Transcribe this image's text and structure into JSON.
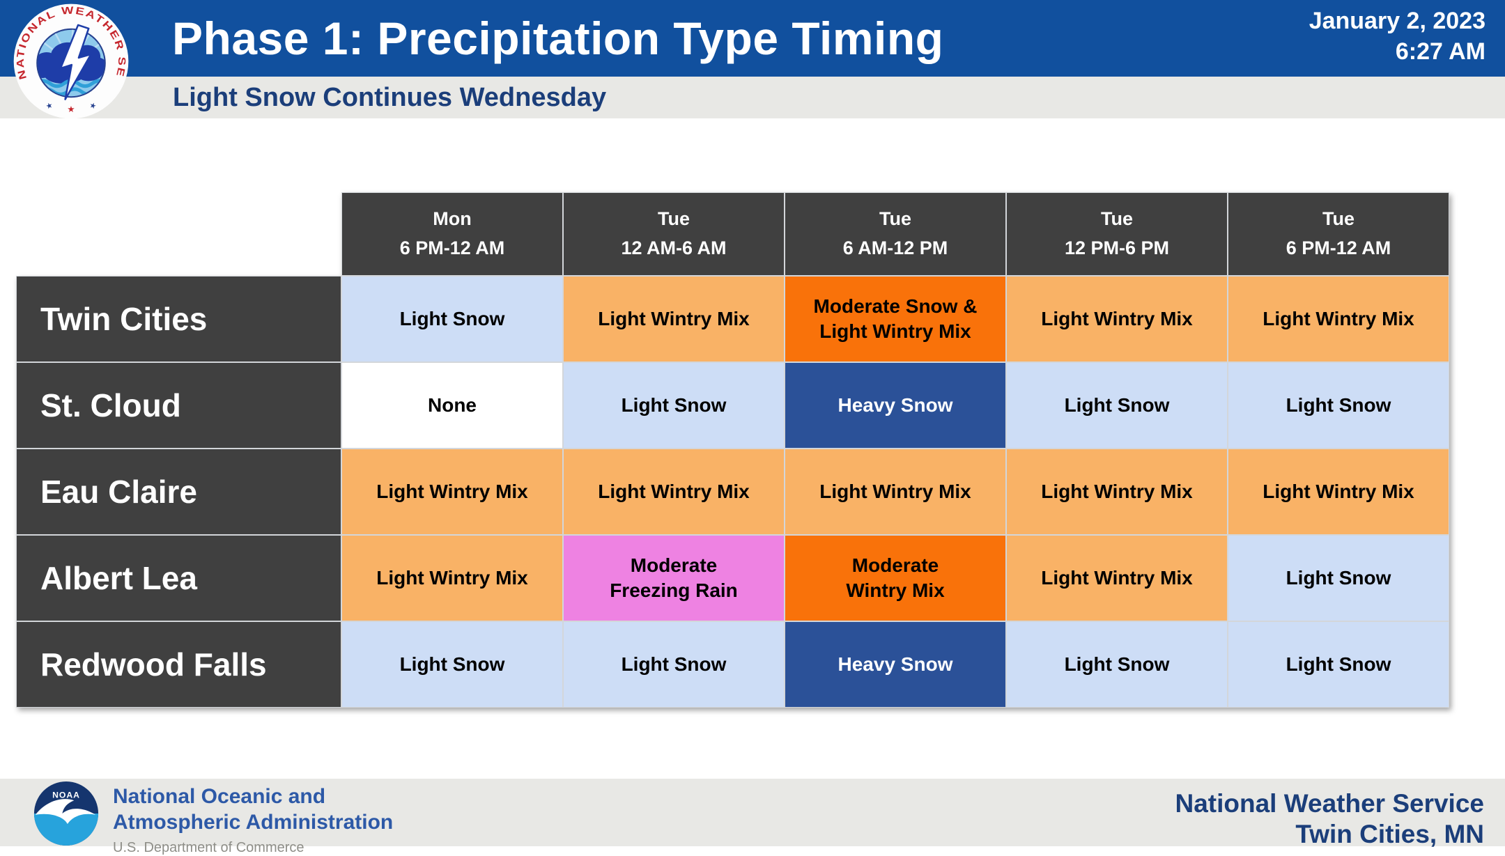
{
  "header": {
    "title": "Phase 1: Precipitation Type Timing",
    "subtitle": "Light Snow Continues Wednesday",
    "date": "January 2, 2023",
    "time": "6:27 AM",
    "nws_logo_ring_text": "NATIONAL WEATHER SERVICE"
  },
  "chart_data": {
    "type": "table",
    "title": "Phase 1: Precipitation Type Timing",
    "subtitle": "Light Snow Continues Wednesday",
    "columns": [
      {
        "day": "Mon",
        "time": "6 PM-12 AM"
      },
      {
        "day": "Tue",
        "time": "12 AM-6 AM"
      },
      {
        "day": "Tue",
        "time": "6 AM-12 PM"
      },
      {
        "day": "Tue",
        "time": "12 PM-6 PM"
      },
      {
        "day": "Tue",
        "time": "6 PM-12 AM"
      }
    ],
    "rows": [
      {
        "location": "Twin Cities",
        "cells": [
          {
            "text": "Light Snow",
            "category": "light_snow"
          },
          {
            "text": "Light Wintry Mix",
            "category": "light_wintry_mix"
          },
          {
            "text": "Moderate Snow &\nLight Wintry Mix",
            "category": "moderate_wintry_mix"
          },
          {
            "text": "Light Wintry Mix",
            "category": "light_wintry_mix"
          },
          {
            "text": "Light Wintry Mix",
            "category": "light_wintry_mix"
          }
        ]
      },
      {
        "location": "St. Cloud",
        "cells": [
          {
            "text": "None",
            "category": "none"
          },
          {
            "text": "Light Snow",
            "category": "light_snow"
          },
          {
            "text": "Heavy Snow",
            "category": "heavy_snow"
          },
          {
            "text": "Light Snow",
            "category": "light_snow"
          },
          {
            "text": "Light Snow",
            "category": "light_snow"
          }
        ]
      },
      {
        "location": "Eau Claire",
        "cells": [
          {
            "text": "Light Wintry Mix",
            "category": "light_wintry_mix"
          },
          {
            "text": "Light Wintry Mix",
            "category": "light_wintry_mix"
          },
          {
            "text": "Light Wintry Mix",
            "category": "light_wintry_mix"
          },
          {
            "text": "Light Wintry Mix",
            "category": "light_wintry_mix"
          },
          {
            "text": "Light Wintry Mix",
            "category": "light_wintry_mix"
          }
        ]
      },
      {
        "location": "Albert Lea",
        "cells": [
          {
            "text": "Light Wintry Mix",
            "category": "light_wintry_mix"
          },
          {
            "text": "Moderate\nFreezing Rain",
            "category": "moderate_freezing_rain"
          },
          {
            "text": "Moderate\nWintry Mix",
            "category": "moderate_wintry_mix"
          },
          {
            "text": "Light Wintry Mix",
            "category": "light_wintry_mix"
          },
          {
            "text": "Light Snow",
            "category": "light_snow"
          }
        ]
      },
      {
        "location": "Redwood Falls",
        "cells": [
          {
            "text": "Light Snow",
            "category": "light_snow"
          },
          {
            "text": "Light Snow",
            "category": "light_snow"
          },
          {
            "text": "Heavy Snow",
            "category": "heavy_snow"
          },
          {
            "text": "Light Snow",
            "category": "light_snow"
          },
          {
            "text": "Light Snow",
            "category": "light_snow"
          }
        ]
      }
    ]
  },
  "colors": {
    "header_bar": "#11509e",
    "band_gray": "#e8e8e5",
    "navy_text": "#1b3e7a",
    "royal_text": "#2d59a7",
    "dept_gray": "#8e8e88",
    "thead_bg": "#404040",
    "grid_border": "#d3d6da",
    "cell_styles": {
      "light_snow": {
        "bg": "#cdddf6",
        "fg": "#000000"
      },
      "light_wintry_mix": {
        "bg": "#f9b266",
        "fg": "#000000"
      },
      "moderate_wintry_mix": {
        "bg": "#f9720a",
        "fg": "#000000"
      },
      "moderate_freezing_rain": {
        "bg": "#ee82e2",
        "fg": "#000000"
      },
      "heavy_snow": {
        "bg": "#2b5198",
        "fg": "#ffffff"
      },
      "none": {
        "bg": "#ffffff",
        "fg": "#000000"
      }
    }
  },
  "footer": {
    "noaa_acronym": "NOAA",
    "noaa_line1": "National Oceanic and",
    "noaa_line2": "Atmospheric Administration",
    "noaa_dept": "U.S. Department of Commerce",
    "office_line1": "National Weather Service",
    "office_line2": "Twin Cities, MN"
  }
}
